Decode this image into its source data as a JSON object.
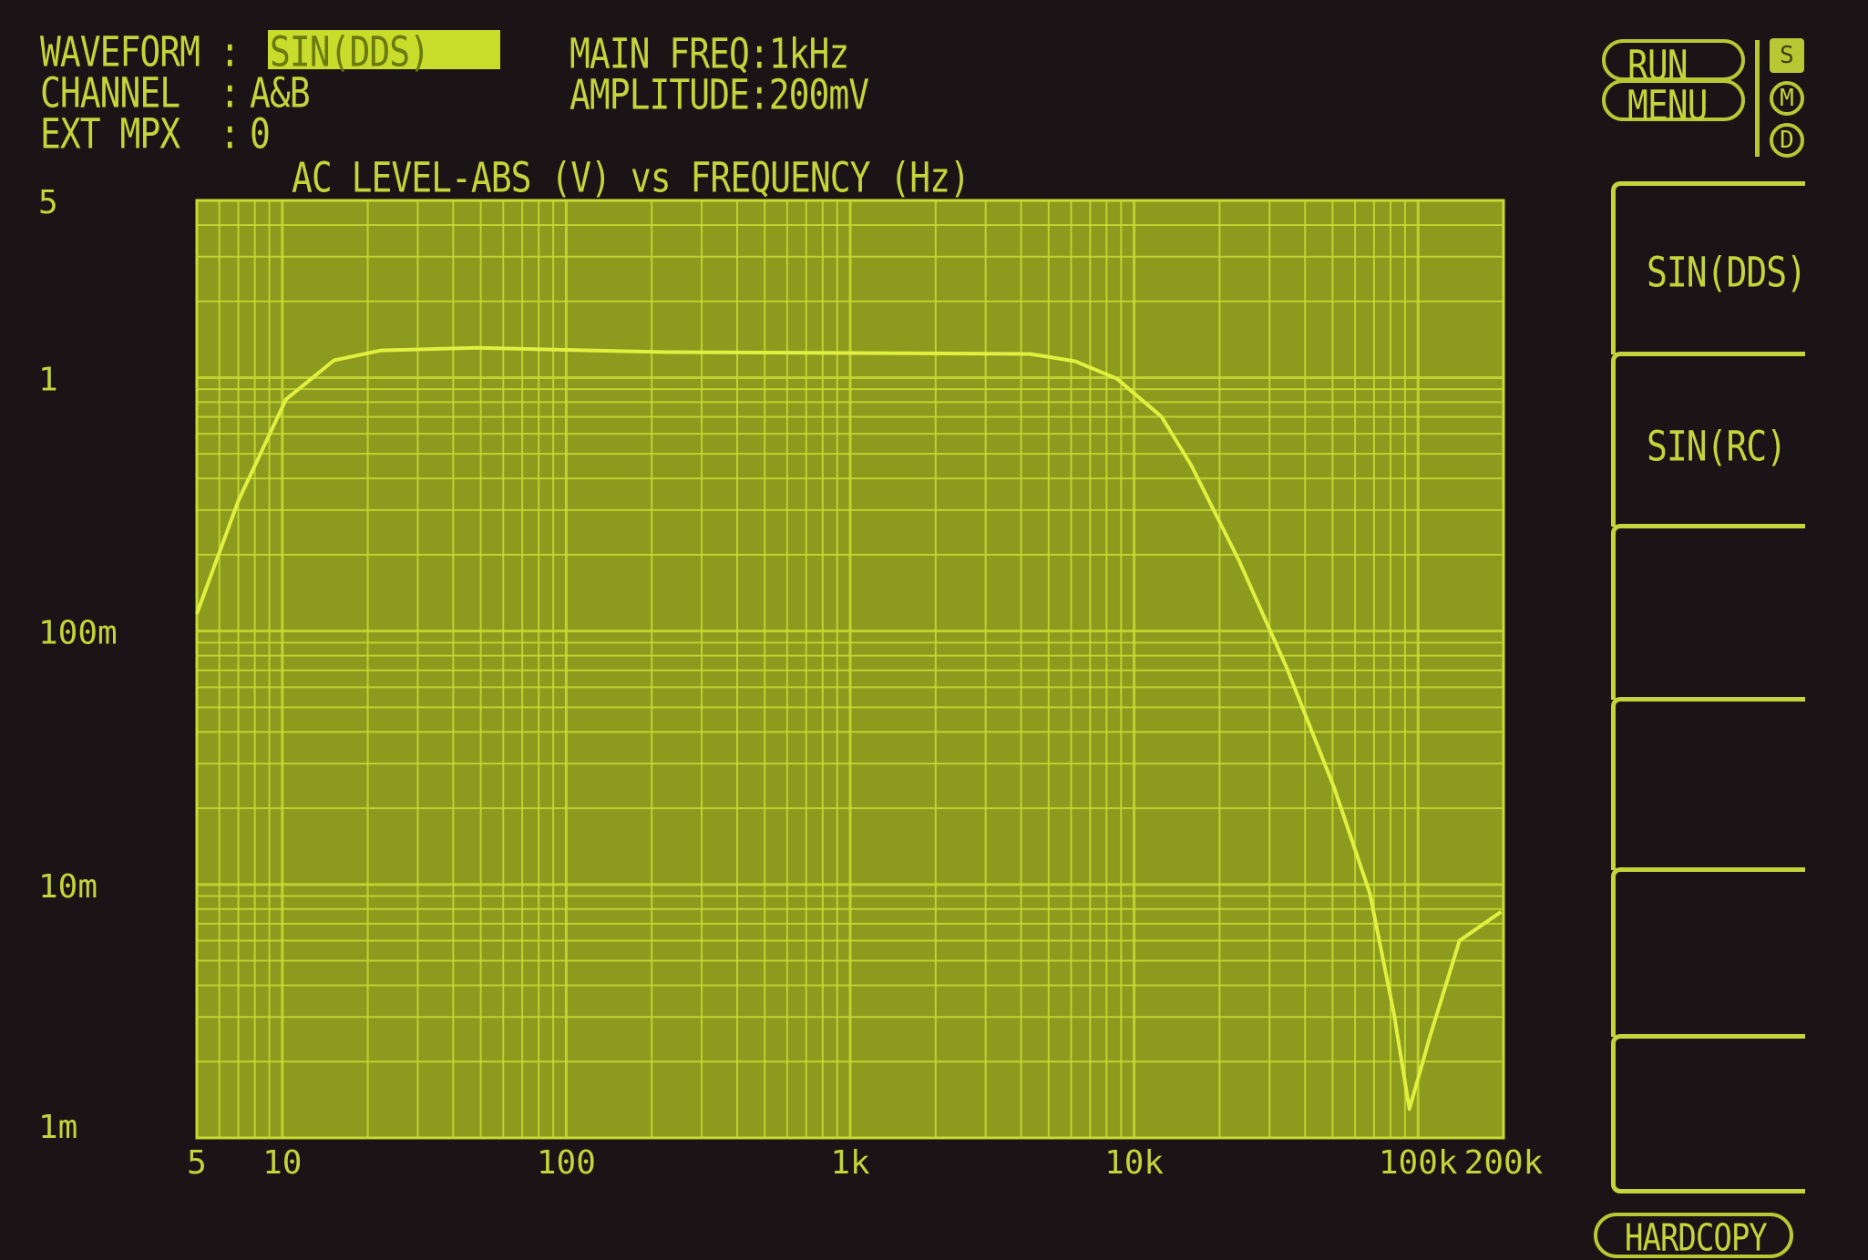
{
  "header": {
    "waveform_label": "WAVEFORM :",
    "waveform_value": "SIN(DDS)",
    "channel_label": "CHANNEL  :",
    "channel_value": "A&B",
    "ext_mpx_label": "EXT MPX  :",
    "ext_mpx_value": "0",
    "main_freq": "MAIN FREQ:1kHz",
    "amplitude": "AMPLITUDE:200mV"
  },
  "controls": {
    "run": "RUN",
    "menu": "MENU",
    "mode_indicators": [
      "S",
      "M",
      "D"
    ],
    "active_mode": "S",
    "hardcopy": "HARDCOPY"
  },
  "softkeys": [
    "SIN(DDS)",
    "SIN(RC)",
    "",
    "",
    "",
    ""
  ],
  "colors": {
    "background": "#1a1416",
    "plot_bg": "#8c9a1e",
    "grid": "#c8dc32",
    "trace": "#e0f040",
    "text": "#c4d43a"
  },
  "chart_data": {
    "type": "line",
    "title": "AC LEVEL-ABS (V) vs FREQUENCY (Hz)",
    "x_scale": "log",
    "y_scale": "log",
    "xlim": [
      5,
      200000
    ],
    "ylim": [
      0.001,
      5
    ],
    "grid": true,
    "x_ticks": [
      {
        "v": 5,
        "label": "5"
      },
      {
        "v": 10,
        "label": "10"
      },
      {
        "v": 100,
        "label": "100"
      },
      {
        "v": 1000,
        "label": "1k"
      },
      {
        "v": 10000,
        "label": "10k"
      },
      {
        "v": 100000,
        "label": "100k"
      },
      {
        "v": 200000,
        "label": "200k"
      }
    ],
    "y_ticks": [
      {
        "v": 5,
        "label": "5"
      },
      {
        "v": 1,
        "label": "1"
      },
      {
        "v": 0.1,
        "label": "100m"
      },
      {
        "v": 0.01,
        "label": "10m"
      },
      {
        "v": 0.001,
        "label": "1m"
      }
    ],
    "x": [
      5,
      7,
      10.3,
      15.2,
      22.3,
      48.5,
      226,
      1070,
      4300,
      6200,
      8700,
      12500,
      15900,
      23400,
      34400,
      50700,
      67700,
      82200,
      93200,
      110000,
      140000,
      196000
    ],
    "y": [
      0.117,
      0.326,
      0.82,
      1.17,
      1.28,
      1.31,
      1.26,
      1.25,
      1.24,
      1.16,
      0.99,
      0.7,
      0.45,
      0.19,
      0.072,
      0.024,
      0.0092,
      0.0031,
      0.0013,
      0.0025,
      0.006,
      0.0078
    ]
  }
}
